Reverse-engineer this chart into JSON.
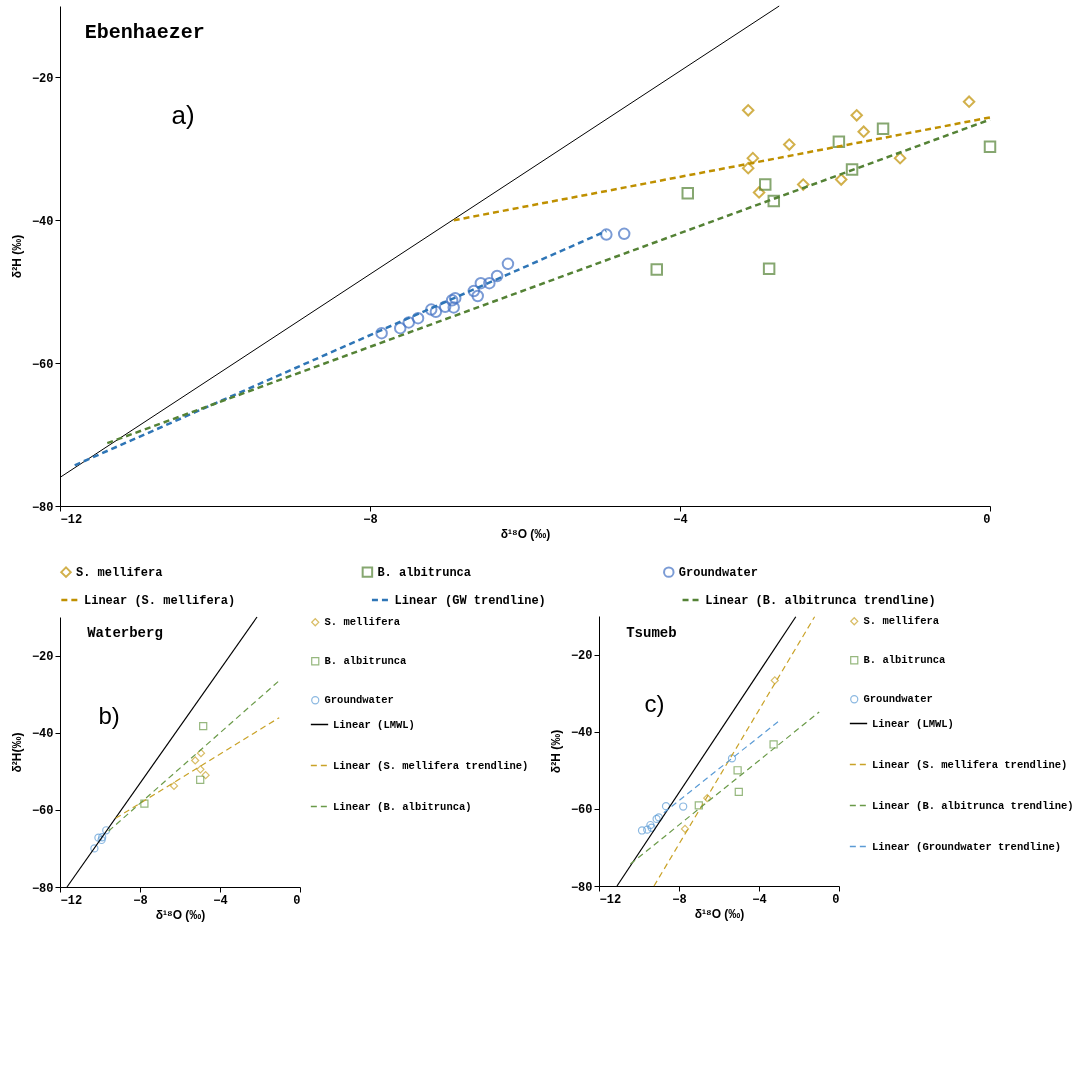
{
  "chart_data": [
    {
      "type": "scatter",
      "title": "Ebenhaezer",
      "xlabel": "δ¹⁸O (‰)",
      "ylabel": "δ²H (‰)",
      "annotations": [
        "a)"
      ],
      "xlim": [
        -12,
        0
      ],
      "ylim": [
        -80,
        -10
      ],
      "xticks": [
        -12,
        -8,
        -4,
        0
      ],
      "yticks": [
        -80,
        -60,
        -40,
        -20
      ],
      "legend": "bottom",
      "series": [
        {
          "name": "S. mellifera",
          "marker": "diamond",
          "color": "#bf9000",
          "x": [
            -3.12,
            -1.72,
            -0.27,
            -1.63,
            -2.59,
            -3.06,
            -3.12,
            -1.16,
            -2.98,
            -2.41,
            -1.92
          ],
          "values": [
            -24.6,
            -25.3,
            -23.4,
            -27.6,
            -29.4,
            -31.3,
            -32.7,
            -31.3,
            -36.1,
            -35.0,
            -34.3
          ]
        },
        {
          "name": "B. albitrunca",
          "marker": "square",
          "color": "#548235",
          "x": [
            -1.38,
            -1.95,
            0,
            -1.78,
            -2.9,
            -2.79,
            -3.9,
            -4.3,
            -2.85
          ],
          "values": [
            -27.2,
            -29.0,
            -29.7,
            -32.9,
            -35.0,
            -37.3,
            -36.2,
            -46.9,
            -46.8
          ]
        },
        {
          "name": "Groundwater",
          "marker": "circle",
          "color": "#4472c4",
          "x": [
            -7.85,
            -7.61,
            -7.5,
            -7.38,
            -7.21,
            -7.15,
            -7.03,
            -6.94,
            -6.92,
            -6.9,
            -6.66,
            -6.61,
            -6.57,
            -6.46,
            -6.36,
            -6.22,
            -4.95,
            -4.72
          ],
          "values": [
            -55.8,
            -55.1,
            -54.3,
            -53.7,
            -52.5,
            -52.8,
            -52.1,
            -51.2,
            -52.2,
            -50.9,
            -49.9,
            -50.6,
            -48.8,
            -48.8,
            -47.8,
            -46.1,
            -42.0,
            -41.9
          ]
        },
        {
          "name": "Linear (S. mellifera)",
          "type": "line",
          "line_style": "dashed",
          "color": "#bf9000",
          "x": [
            -6.92,
            0
          ],
          "values": [
            -40.0,
            -25.6
          ]
        },
        {
          "name": "Linear (GW trendline)",
          "type": "line",
          "line_style": "dashed",
          "color": "#2e75b6",
          "x": [
            -11.81,
            -4.95
          ],
          "values": [
            -74.3,
            -41.5
          ]
        },
        {
          "name": "Linear (B. albitrunca trendline)",
          "type": "line",
          "line_style": "dashed",
          "color": "#548235",
          "x": [
            -11.39,
            0
          ],
          "values": [
            -71.2,
            -25.9
          ]
        },
        {
          "type": "line",
          "line_style": "solid",
          "color": "#000000",
          "x": [
            -12,
            -2.72
          ],
          "values": [
            -76,
            -10
          ]
        }
      ]
    },
    {
      "type": "scatter",
      "title": "Waterberg",
      "xlabel": "δ¹⁸O (‰)",
      "ylabel": "δ²H(‰)",
      "annotations": [
        "b)"
      ],
      "xlim": [
        -12,
        0
      ],
      "ylim": [
        -80,
        -10
      ],
      "xticks": [
        -12,
        -8,
        -4,
        0
      ],
      "yticks": [
        -80,
        -60,
        -40,
        -20
      ],
      "legend": "right",
      "series": [
        {
          "name": "S. mellifera",
          "marker": "diamond",
          "color": "#c9a227",
          "x": [
            -4.95,
            -5.24,
            -4.98,
            -4.72,
            -6.3
          ],
          "values": [
            -45.3,
            -47.2,
            -49.5,
            -51.0,
            -53.8
          ]
        },
        {
          "name": "B. albitrunca",
          "marker": "square",
          "color": "#6a9a48",
          "x": [
            -4.84,
            -4.99,
            -7.78
          ],
          "values": [
            -38.3,
            -52.2,
            -58.4
          ]
        },
        {
          "name": "Groundwater",
          "marker": "circle",
          "color": "#5b9bd5",
          "x": [
            -10.28,
            -10.08,
            -9.92,
            -9.89,
            -9.69
          ],
          "values": [
            -70.0,
            -67.2,
            -67.8,
            -67.1,
            -65.3
          ]
        },
        {
          "name": "Linear (LMWL)",
          "type": "line",
          "line_style": "solid",
          "color": "#000000",
          "x": [
            -11.65,
            -2.15
          ],
          "values": [
            -80,
            -10
          ]
        },
        {
          "name": "Linear (S. mellifera trendline)",
          "type": "line",
          "line_style": "dashed",
          "color": "#c9a227",
          "x": [
            -9.22,
            -1.04
          ],
          "values": [
            -62.2,
            -36.1
          ]
        },
        {
          "name": "Linear (B. albitrunca)",
          "type": "line",
          "line_style": "dashed",
          "color": "#6a9a48",
          "x": [
            -9.57,
            -1.04
          ],
          "values": [
            -65.5,
            -26.5
          ]
        }
      ]
    },
    {
      "type": "scatter",
      "title": "Tsumeb",
      "xlabel": "δ¹⁸O (‰)",
      "ylabel": "δ²H (‰)",
      "annotations": [
        "c)"
      ],
      "xlim": [
        -12,
        0
      ],
      "ylim": [
        -80,
        -10
      ],
      "xticks": [
        -12,
        -8,
        -4,
        0
      ],
      "yticks": [
        -80,
        -60,
        -40,
        -20
      ],
      "legend": "right",
      "series": [
        {
          "name": "S. mellifera",
          "marker": "diamond",
          "color": "#c9a227",
          "x": [
            -3.21,
            -6.59,
            -7.7
          ],
          "values": [
            -26.7,
            -57.2,
            -65.2
          ]
        },
        {
          "name": "B. albitrunca",
          "marker": "square",
          "color": "#6a9a48",
          "x": [
            -3.27,
            -5.07,
            -5.01,
            -7.01
          ],
          "values": [
            -43.3,
            -50.0,
            -55.6,
            -59.1
          ]
        },
        {
          "name": "Groundwater",
          "marker": "circle",
          "color": "#5b9bd5",
          "x": [
            -5.35,
            -7.79,
            -8.65,
            -9.01,
            -9.12,
            -9.43,
            -9.37,
            -9.59,
            -9.85
          ],
          "values": [
            -46.9,
            -59.4,
            -59.3,
            -62.2,
            -62.6,
            -64.2,
            -64.9,
            -65.4,
            -65.6
          ]
        },
        {
          "name": "Linear (LMWL)",
          "type": "line",
          "line_style": "solid",
          "color": "#000000",
          "x": [
            -11.1,
            -2.16
          ],
          "values": [
            -80,
            -10.2
          ]
        },
        {
          "name": "Linear (S. mellifera trendline)",
          "type": "line",
          "line_style": "dashed",
          "color": "#c9a227",
          "x": [
            -9.25,
            -1.22
          ],
          "values": [
            -80,
            -10.2
          ]
        },
        {
          "name": "Linear (B. albitrunca trendline)",
          "type": "line",
          "line_style": "dashed",
          "color": "#6a9a48",
          "x": [
            -10.43,
            -0.99
          ],
          "values": [
            -74.3,
            -34.9
          ]
        },
        {
          "name": "Linear (Groundwater trendline)",
          "type": "line",
          "line_style": "dashed",
          "color": "#5b9bd5",
          "x": [
            -8.76,
            -3.0
          ],
          "values": [
            -61.0,
            -37.2
          ]
        }
      ]
    }
  ]
}
